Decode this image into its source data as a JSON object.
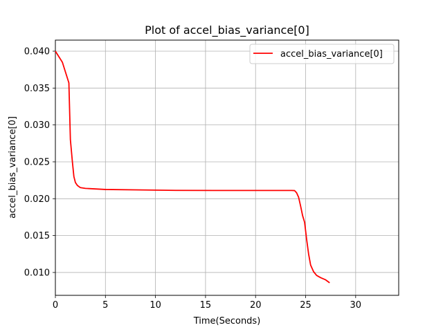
{
  "chart_data": {
    "type": "line",
    "title": "Plot of accel_bias_variance[0]",
    "xlabel": "Time(Seconds)",
    "ylabel": "accel_bias_variance[0]",
    "xlim": [
      0,
      34.3
    ],
    "ylim": [
      0.0069,
      0.0415
    ],
    "xticks": [
      0,
      5,
      10,
      15,
      20,
      25,
      30
    ],
    "xtick_labels": [
      "0",
      "5",
      "10",
      "15",
      "20",
      "25",
      "30"
    ],
    "yticks": [
      0.01,
      0.015,
      0.02,
      0.025,
      0.03,
      0.035,
      0.04
    ],
    "ytick_labels": [
      "0.010",
      "0.015",
      "0.020",
      "0.025",
      "0.030",
      "0.035",
      "0.040"
    ],
    "grid": true,
    "legend_position": "top-right",
    "series": [
      {
        "name": "accel_bias_variance[0]",
        "color": "#ff0000",
        "x": [
          0,
          0.7,
          1.35,
          1.5,
          1.7,
          1.85,
          2.0,
          2.2,
          2.5,
          3.0,
          5.0,
          8.0,
          12.0,
          16.0,
          20.0,
          23.0,
          23.6,
          23.9,
          24.1,
          24.3,
          24.5,
          24.7,
          24.9,
          25.1,
          25.3,
          25.5,
          25.8,
          26.1,
          26.5,
          27.0,
          27.4
        ],
        "values": [
          0.04,
          0.0385,
          0.0357,
          0.028,
          0.025,
          0.023,
          0.0222,
          0.0218,
          0.0215,
          0.0214,
          0.02125,
          0.0212,
          0.02113,
          0.02112,
          0.02112,
          0.02112,
          0.02112,
          0.0211,
          0.0208,
          0.0202,
          0.019,
          0.0177,
          0.0168,
          0.0145,
          0.0125,
          0.011,
          0.0101,
          0.0096,
          0.0093,
          0.009,
          0.0086
        ]
      }
    ]
  }
}
